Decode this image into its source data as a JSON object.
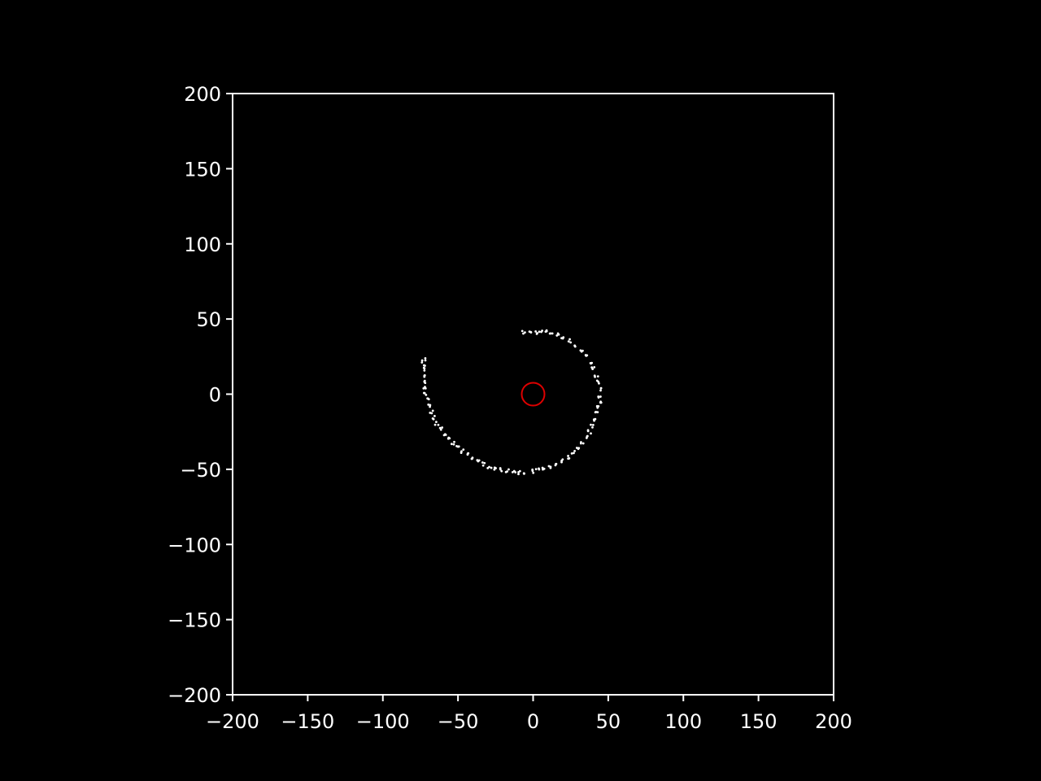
{
  "chart_data": {
    "type": "scatter",
    "title": "",
    "xlabel": "",
    "ylabel": "",
    "xlim": [
      -200,
      200
    ],
    "ylim": [
      -200,
      200
    ],
    "xticks": [
      -200,
      -150,
      -100,
      -50,
      0,
      50,
      100,
      150,
      200
    ],
    "yticks": [
      -200,
      -150,
      -100,
      -50,
      0,
      50,
      100,
      150,
      200
    ],
    "xtick_labels": [
      "−200",
      "−150",
      "−100",
      "−50",
      "0",
      "50",
      "100",
      "150",
      "200"
    ],
    "ytick_labels": [
      "−200",
      "−150",
      "−100",
      "−50",
      "0",
      "50",
      "100",
      "150",
      "200"
    ],
    "grid": false,
    "legend": "none",
    "colors": {
      "background": "#000000",
      "axes": "#ffffff",
      "points": "#ffffff",
      "marker": "#dd0000"
    },
    "center_marker": {
      "x": 0,
      "y": 0,
      "shape": "open-circle"
    },
    "series": [
      {
        "marker": "dot",
        "points": [
          [
            -6,
            41
          ],
          [
            -2,
            41
          ],
          [
            2,
            41.2
          ],
          [
            5,
            41.5
          ],
          [
            8,
            41.4
          ],
          [
            12,
            40.8
          ],
          [
            16,
            39.5
          ],
          [
            20,
            37.8
          ],
          [
            24,
            35.5
          ],
          [
            28,
            32.5
          ],
          [
            32,
            29
          ],
          [
            35,
            25.5
          ],
          [
            38,
            21
          ],
          [
            40,
            17
          ],
          [
            42,
            12.5
          ],
          [
            43.5,
            8
          ],
          [
            44.3,
            3
          ],
          [
            44.6,
            -1
          ],
          [
            44.4,
            -5
          ],
          [
            43.8,
            -9
          ],
          [
            42.6,
            -13
          ],
          [
            41.2,
            -17
          ],
          [
            39.5,
            -21
          ],
          [
            37.5,
            -25
          ],
          [
            35,
            -29
          ],
          [
            32.5,
            -32.5
          ],
          [
            29.5,
            -36
          ],
          [
            26.5,
            -39
          ],
          [
            23,
            -42
          ],
          [
            19,
            -44.5
          ],
          [
            15,
            -46.5
          ],
          [
            11,
            -48
          ],
          [
            7,
            -49.5
          ],
          [
            3,
            -50.5
          ],
          [
            -1,
            -51.2
          ],
          [
            -5,
            -51.8
          ],
          [
            -9,
            -52.3
          ],
          [
            -13,
            -51.8
          ],
          [
            -17,
            -51.2
          ],
          [
            -21,
            -50.3
          ],
          [
            -25,
            -49.2
          ],
          [
            -29,
            -48
          ],
          [
            -33,
            -46.5
          ],
          [
            -37,
            -44.8
          ],
          [
            -40.5,
            -42.8
          ],
          [
            -44,
            -40.5
          ],
          [
            -47.5,
            -38
          ],
          [
            -50.5,
            -35.5
          ],
          [
            -53.5,
            -32.5
          ],
          [
            -56.5,
            -29.5
          ],
          [
            -59,
            -26.5
          ],
          [
            -61.5,
            -23
          ],
          [
            -64,
            -19.5
          ],
          [
            -66,
            -15.5
          ],
          [
            -67.8,
            -11.5
          ],
          [
            -69.3,
            -7.5
          ],
          [
            -70.5,
            -3.5
          ],
          [
            -71.5,
            0.5
          ],
          [
            -72.3,
            4.5
          ],
          [
            -72.8,
            8.5
          ],
          [
            -73.1,
            12.5
          ],
          [
            -73.2,
            16.5
          ],
          [
            -73.1,
            20
          ],
          [
            -72.8,
            23
          ]
        ]
      }
    ]
  }
}
